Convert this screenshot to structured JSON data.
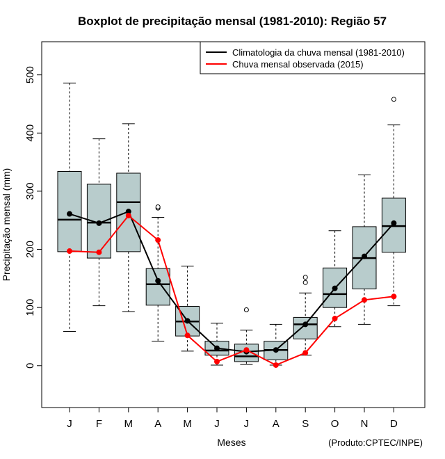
{
  "chart_data": {
    "type": "boxplot",
    "title": "Boxplot de precipitação mensal (1981-2010): Região 57",
    "xlabel": "Meses",
    "ylabel": "Precipitação mensal (mm)",
    "credit": "(Produto:CPTEC/INPE)",
    "ylim": [
      -72,
      557
    ],
    "yticks": [
      0,
      100,
      200,
      300,
      400,
      500
    ],
    "categories": [
      "J",
      "F",
      "M",
      "A",
      "M",
      "J",
      "J",
      "A",
      "S",
      "O",
      "N",
      "D"
    ],
    "boxes": [
      {
        "min": 59,
        "q1": 196,
        "median": 251,
        "q3": 334,
        "max": 486,
        "outliers": []
      },
      {
        "min": 103,
        "q1": 185,
        "median": 246,
        "q3": 312,
        "max": 390,
        "outliers": []
      },
      {
        "min": 93,
        "q1": 196,
        "median": 281,
        "q3": 331,
        "max": 416,
        "outliers": []
      },
      {
        "min": 42,
        "q1": 104,
        "median": 140,
        "q3": 167,
        "max": 255,
        "outliers": [
          271,
          273
        ]
      },
      {
        "min": 25,
        "q1": 51,
        "median": 76,
        "q3": 102,
        "max": 171,
        "outliers": []
      },
      {
        "min": 1,
        "q1": 18,
        "median": 26,
        "q3": 42,
        "max": 73,
        "outliers": []
      },
      {
        "min": 2,
        "q1": 7,
        "median": 16,
        "q3": 37,
        "max": 61,
        "outliers": [
          96
        ]
      },
      {
        "min": 1,
        "q1": 10,
        "median": 27,
        "q3": 42,
        "max": 71,
        "outliers": []
      },
      {
        "min": 18,
        "q1": 46,
        "median": 71,
        "q3": 83,
        "max": 125,
        "outliers": [
          143,
          152
        ]
      },
      {
        "min": 67,
        "q1": 100,
        "median": 123,
        "q3": 168,
        "max": 232,
        "outliers": []
      },
      {
        "min": 71,
        "q1": 132,
        "median": 185,
        "q3": 239,
        "max": 328,
        "outliers": []
      },
      {
        "min": 103,
        "q1": 195,
        "median": 240,
        "q3": 288,
        "max": 414,
        "outliers": [
          458
        ]
      }
    ],
    "series": [
      {
        "name": "Climatologia da chuva mensal (1981-2010)",
        "color": "#000000",
        "values": [
          261,
          245,
          265,
          146,
          77,
          30,
          24,
          27,
          71,
          133,
          188,
          245
        ]
      },
      {
        "name": "Chuva mensal observada (2015)",
        "color": "#ff0000",
        "values": [
          197,
          195,
          258,
          216,
          52,
          7,
          27,
          1,
          22,
          81,
          113,
          119
        ]
      }
    ],
    "legend_position": "top-right",
    "box_fill": "#b8cccc"
  }
}
